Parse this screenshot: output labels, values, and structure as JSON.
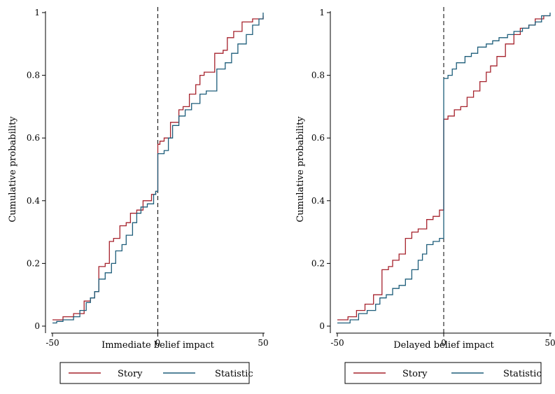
{
  "chart_data": [
    {
      "type": "line",
      "step": true,
      "xlabel": "Immediate belief impact",
      "ylabel": "Cumulative probability",
      "xlim": [
        -50,
        50
      ],
      "ylim": [
        0,
        1
      ],
      "xticks": [
        "-50",
        "0",
        "50"
      ],
      "yticks": [
        "0",
        "0.2",
        "0.4",
        "0.6",
        "0.8",
        "1"
      ],
      "reference_line": {
        "x": 0,
        "style": "dashed"
      },
      "legend": {
        "position": "bottom",
        "entries": [
          "Story",
          "Statistic"
        ]
      },
      "series": [
        {
          "name": "Story",
          "color": "#a6222c",
          "points": [
            [
              -50,
              0.02
            ],
            [
              -45,
              0.03
            ],
            [
              -40,
              0.04
            ],
            [
              -35,
              0.08
            ],
            [
              -32,
              0.09
            ],
            [
              -30,
              0.11
            ],
            [
              -28,
              0.19
            ],
            [
              -25,
              0.2
            ],
            [
              -23,
              0.27
            ],
            [
              -21,
              0.28
            ],
            [
              -18,
              0.32
            ],
            [
              -15,
              0.33
            ],
            [
              -13,
              0.36
            ],
            [
              -10,
              0.37
            ],
            [
              -7,
              0.4
            ],
            [
              -3,
              0.42
            ],
            [
              -1,
              0.43
            ],
            [
              0,
              0.58
            ],
            [
              1,
              0.59
            ],
            [
              3,
              0.6
            ],
            [
              6,
              0.65
            ],
            [
              10,
              0.69
            ],
            [
              12,
              0.7
            ],
            [
              15,
              0.74
            ],
            [
              18,
              0.77
            ],
            [
              20,
              0.8
            ],
            [
              22,
              0.81
            ],
            [
              27,
              0.87
            ],
            [
              31,
              0.88
            ],
            [
              33,
              0.92
            ],
            [
              36,
              0.94
            ],
            [
              40,
              0.97
            ],
            [
              45,
              0.98
            ],
            [
              50,
              0.99
            ]
          ]
        },
        {
          "name": "Statistic",
          "color": "#1d5d7a",
          "points": [
            [
              -50,
              0.01
            ],
            [
              -48,
              0.015
            ],
            [
              -45,
              0.02
            ],
            [
              -40,
              0.03
            ],
            [
              -37,
              0.05
            ],
            [
              -34,
              0.075
            ],
            [
              -32,
              0.09
            ],
            [
              -30,
              0.11
            ],
            [
              -28,
              0.15
            ],
            [
              -25,
              0.17
            ],
            [
              -22,
              0.2
            ],
            [
              -20,
              0.24
            ],
            [
              -17,
              0.26
            ],
            [
              -15,
              0.29
            ],
            [
              -12,
              0.33
            ],
            [
              -10,
              0.36
            ],
            [
              -8,
              0.38
            ],
            [
              -5,
              0.39
            ],
            [
              -2,
              0.42
            ],
            [
              -1,
              0.43
            ],
            [
              0,
              0.55
            ],
            [
              3,
              0.56
            ],
            [
              5,
              0.6
            ],
            [
              7,
              0.64
            ],
            [
              10,
              0.67
            ],
            [
              13,
              0.69
            ],
            [
              16,
              0.71
            ],
            [
              20,
              0.74
            ],
            [
              23,
              0.75
            ],
            [
              28,
              0.82
            ],
            [
              32,
              0.84
            ],
            [
              35,
              0.87
            ],
            [
              38,
              0.9
            ],
            [
              42,
              0.93
            ],
            [
              45,
              0.96
            ],
            [
              48,
              0.98
            ],
            [
              50,
              1.0
            ]
          ]
        }
      ]
    },
    {
      "type": "line",
      "step": true,
      "xlabel": "Delayed belief impact",
      "ylabel": "Cumulative probability",
      "xlim": [
        -50,
        50
      ],
      "ylim": [
        0,
        1
      ],
      "xticks": [
        "-50",
        "0",
        "50"
      ],
      "yticks": [
        "0",
        "0.2",
        "0.4",
        "0.6",
        "0.8",
        "1"
      ],
      "reference_line": {
        "x": 0,
        "style": "dashed"
      },
      "legend": {
        "position": "bottom",
        "entries": [
          "Story",
          "Statistic"
        ]
      },
      "series": [
        {
          "name": "Story",
          "color": "#a6222c",
          "points": [
            [
              -50,
              0.02
            ],
            [
              -45,
              0.03
            ],
            [
              -41,
              0.05
            ],
            [
              -37,
              0.07
            ],
            [
              -33,
              0.1
            ],
            [
              -29,
              0.18
            ],
            [
              -26,
              0.19
            ],
            [
              -24,
              0.21
            ],
            [
              -21,
              0.23
            ],
            [
              -18,
              0.28
            ],
            [
              -15,
              0.3
            ],
            [
              -12,
              0.31
            ],
            [
              -8,
              0.34
            ],
            [
              -5,
              0.35
            ],
            [
              -2,
              0.37
            ],
            [
              0,
              0.66
            ],
            [
              2,
              0.67
            ],
            [
              5,
              0.69
            ],
            [
              8,
              0.7
            ],
            [
              11,
              0.73
            ],
            [
              14,
              0.75
            ],
            [
              17,
              0.78
            ],
            [
              20,
              0.81
            ],
            [
              22,
              0.83
            ],
            [
              25,
              0.86
            ],
            [
              29,
              0.9
            ],
            [
              33,
              0.93
            ],
            [
              36,
              0.95
            ],
            [
              40,
              0.96
            ],
            [
              43,
              0.98
            ],
            [
              47,
              0.99
            ],
            [
              50,
              0.99
            ]
          ]
        },
        {
          "name": "Statistic",
          "color": "#1d5d7a",
          "points": [
            [
              -50,
              0.01
            ],
            [
              -47,
              0.01
            ],
            [
              -44,
              0.02
            ],
            [
              -40,
              0.04
            ],
            [
              -36,
              0.05
            ],
            [
              -32,
              0.07
            ],
            [
              -30,
              0.09
            ],
            [
              -27,
              0.1
            ],
            [
              -24,
              0.12
            ],
            [
              -21,
              0.13
            ],
            [
              -18,
              0.15
            ],
            [
              -15,
              0.18
            ],
            [
              -12,
              0.21
            ],
            [
              -10,
              0.23
            ],
            [
              -8,
              0.26
            ],
            [
              -5,
              0.27
            ],
            [
              -2,
              0.28
            ],
            [
              0,
              0.79
            ],
            [
              2,
              0.8
            ],
            [
              4,
              0.82
            ],
            [
              6,
              0.84
            ],
            [
              10,
              0.86
            ],
            [
              13,
              0.87
            ],
            [
              16,
              0.89
            ],
            [
              20,
              0.9
            ],
            [
              23,
              0.91
            ],
            [
              26,
              0.92
            ],
            [
              30,
              0.93
            ],
            [
              33,
              0.94
            ],
            [
              37,
              0.95
            ],
            [
              40,
              0.96
            ],
            [
              43,
              0.97
            ],
            [
              46,
              0.99
            ],
            [
              50,
              1.0
            ]
          ]
        }
      ]
    }
  ]
}
